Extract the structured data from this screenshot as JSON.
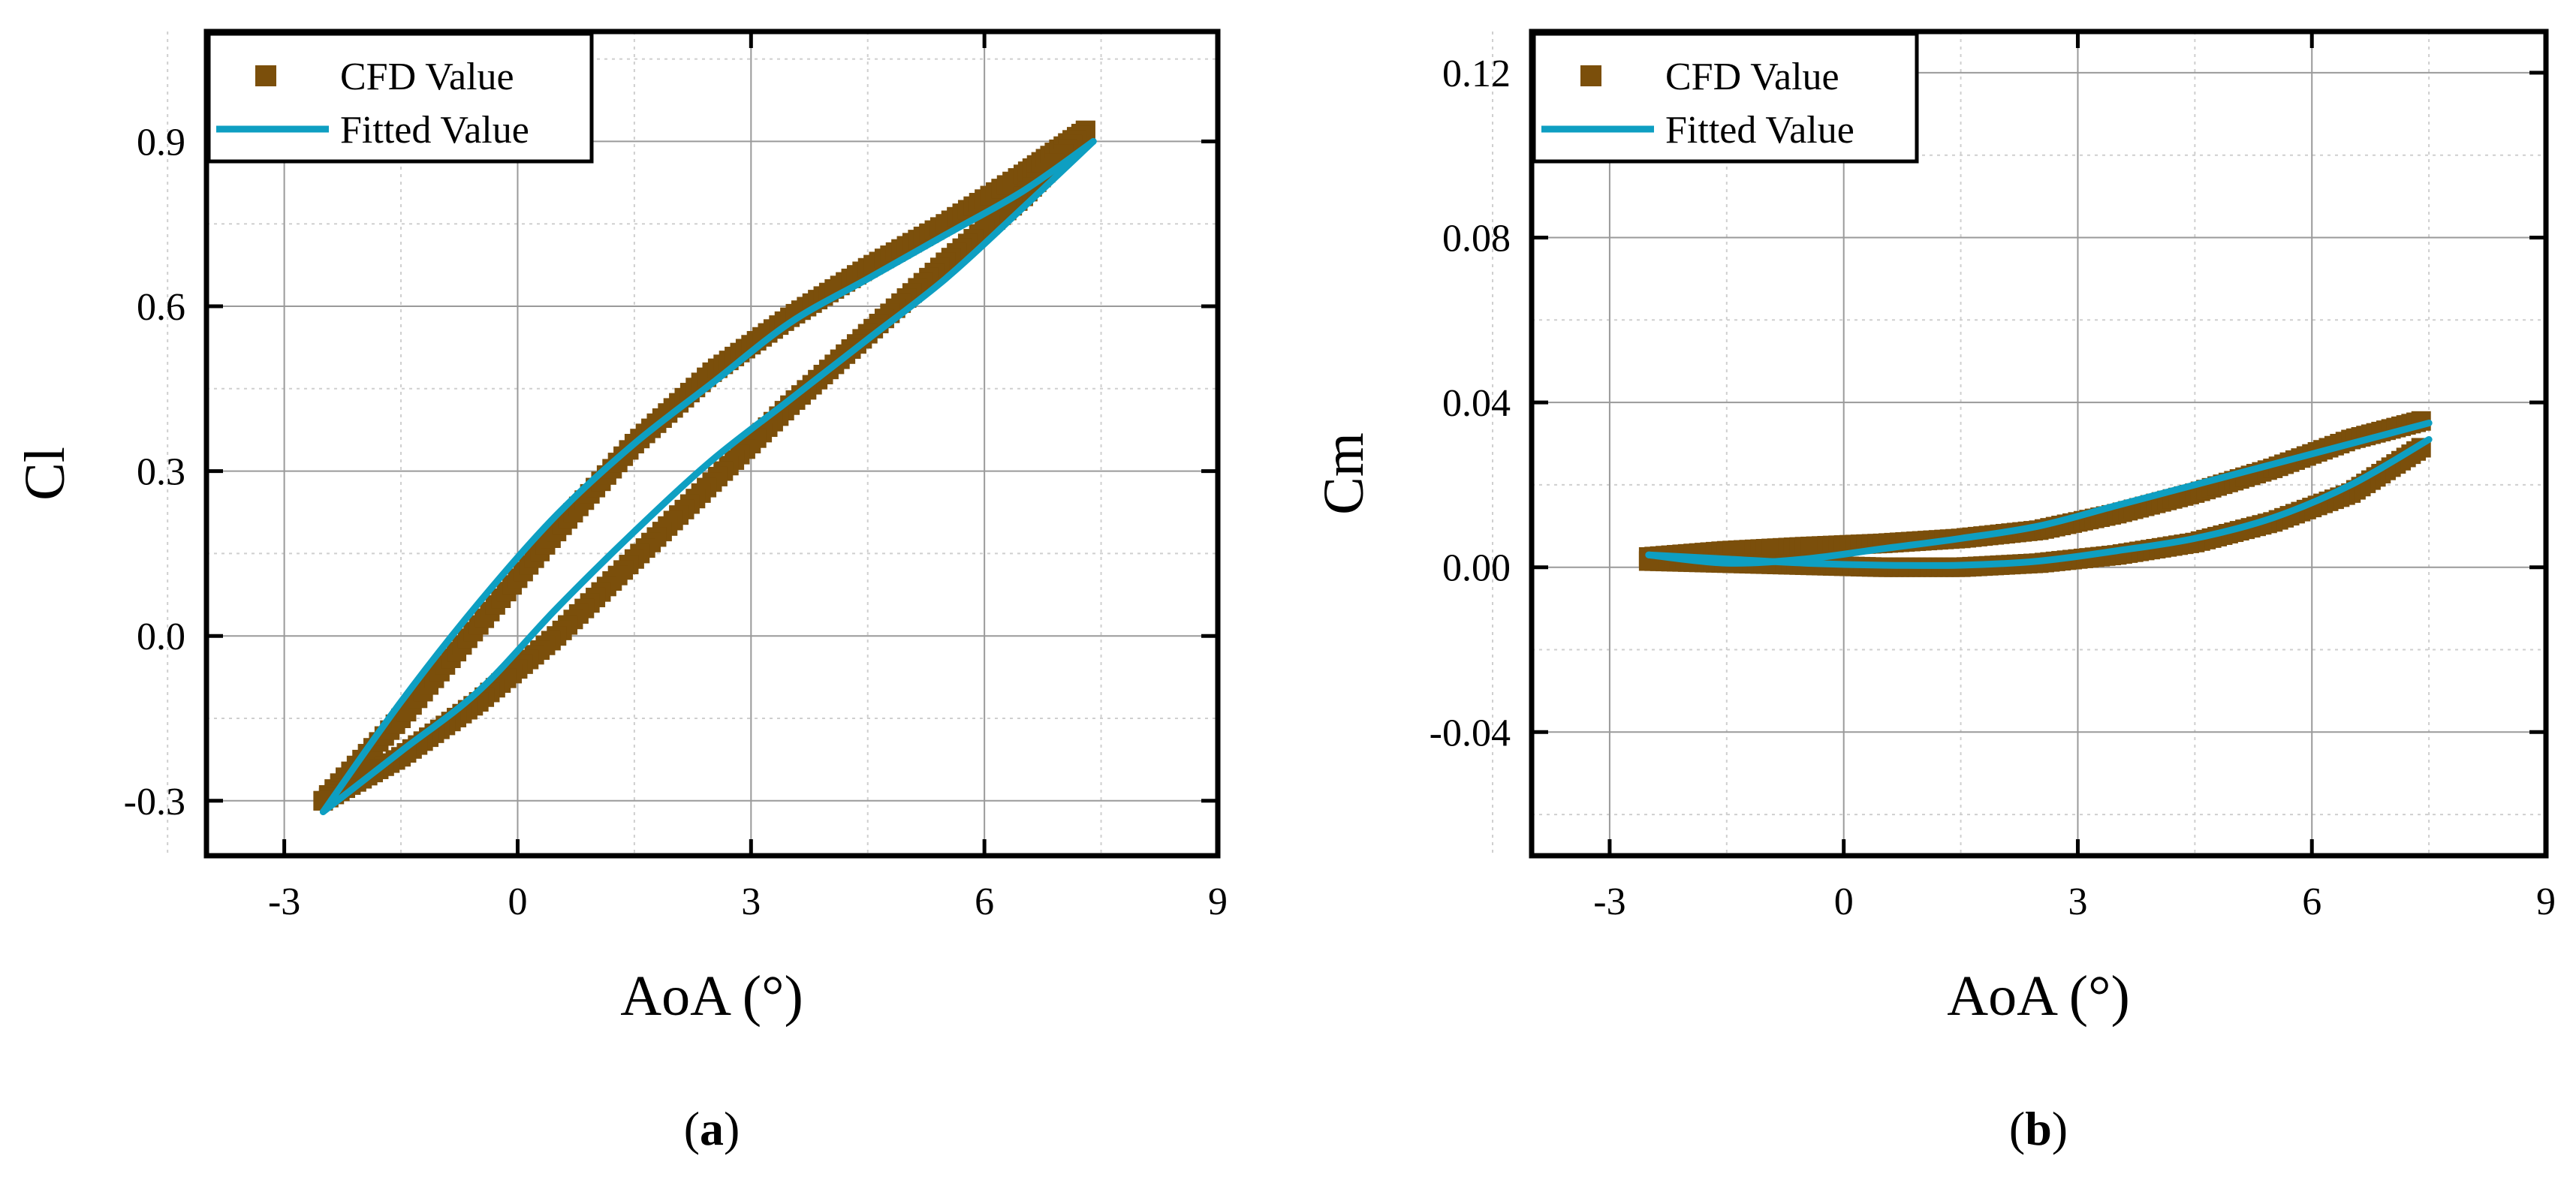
{
  "chart_data": [
    {
      "type": "scatter",
      "panel_label_open": "(",
      "panel_label_letter": "a",
      "panel_label_close": ")",
      "xlabel": "AoA (°)",
      "ylabel": "Cl",
      "xlim": [
        -4,
        9
      ],
      "ylim": [
        -0.4,
        1.1
      ],
      "xticks": [
        -3,
        0,
        3,
        6,
        9
      ],
      "yticks": [
        -0.3,
        0.0,
        0.3,
        0.6,
        0.9
      ],
      "ytick_labels": [
        "-0.3",
        "0.0",
        "0.3",
        "0.6",
        "0.9"
      ],
      "grid": true,
      "legend_position": "top-left",
      "series": [
        {
          "name": "CFD Value",
          "kind": "markers",
          "color": "#7B4F0B",
          "upper": {
            "x": [
              -2.5,
              -1.5,
              -0.5,
              0.5,
              1.5,
              2.5,
              3.5,
              4.5,
              5.5,
              6.5,
              7.3
            ],
            "y": [
              -0.3,
              -0.15,
              0.02,
              0.19,
              0.35,
              0.48,
              0.58,
              0.67,
              0.75,
              0.84,
              0.92
            ]
          },
          "lower": {
            "x": [
              7.3,
              6.5,
              5.5,
              4.5,
              3.5,
              2.5,
              1.5,
              0.5,
              -0.5,
              -1.5,
              -2.5
            ],
            "y": [
              0.92,
              0.8,
              0.68,
              0.55,
              0.42,
              0.28,
              0.14,
              0.0,
              -0.12,
              -0.22,
              -0.3
            ]
          }
        },
        {
          "name": "Fitted Value",
          "kind": "line",
          "color": "#0E9FC2",
          "upper": {
            "x": [
              -2.5,
              -1.5,
              -0.5,
              0.5,
              1.5,
              2.5,
              3.5,
              4.5,
              5.5,
              6.5,
              7.4
            ],
            "y": [
              -0.32,
              -0.12,
              0.06,
              0.22,
              0.35,
              0.46,
              0.57,
              0.65,
              0.73,
              0.81,
              0.9
            ]
          },
          "lower": {
            "x": [
              7.4,
              6.5,
              5.5,
              4.5,
              3.5,
              2.5,
              1.5,
              0.5,
              -0.5,
              -1.5,
              -2.5
            ],
            "y": [
              0.9,
              0.78,
              0.65,
              0.54,
              0.43,
              0.32,
              0.19,
              0.05,
              -0.1,
              -0.21,
              -0.32
            ]
          }
        }
      ]
    },
    {
      "type": "scatter",
      "panel_label_open": "(",
      "panel_label_letter": "b",
      "panel_label_close": ")",
      "xlabel": "AoA (°)",
      "ylabel": "Cm",
      "xlim": [
        -4,
        9
      ],
      "ylim": [
        -0.07,
        0.13
      ],
      "xticks": [
        -3,
        0,
        3,
        6,
        9
      ],
      "yticks": [
        -0.04,
        0.0,
        0.04,
        0.08,
        0.12
      ],
      "ytick_labels": [
        "-0.04",
        "0.00",
        "0.04",
        "0.08",
        "0.12"
      ],
      "grid": true,
      "legend_position": "top-left",
      "series": [
        {
          "name": "CFD Value",
          "kind": "markers",
          "color": "#7B4F0B",
          "upper": {
            "x": [
              -2.5,
              -1.5,
              -0.5,
              0.5,
              1.5,
              2.5,
              3.5,
              4.5,
              5.5,
              6.5,
              7.4
            ],
            "y": [
              0.0025,
              0.004,
              0.005,
              0.0058,
              0.007,
              0.009,
              0.013,
              0.018,
              0.024,
              0.031,
              0.0355
            ]
          },
          "lower": {
            "x": [
              7.4,
              6.5,
              5.5,
              4.5,
              3.5,
              2.5,
              1.5,
              0.5,
              -0.5,
              -1.5,
              -2.5
            ],
            "y": [
              0.029,
              0.018,
              0.011,
              0.006,
              0.003,
              0.001,
              0.0,
              0.0,
              0.0005,
              0.001,
              0.0015
            ]
          }
        },
        {
          "name": "Fitted Value",
          "kind": "line",
          "color": "#0E9FC2",
          "upper": {
            "x": [
              -2.5,
              -1.5,
              -0.5,
              0.5,
              1.5,
              2.5,
              3.5,
              4.5,
              5.5,
              6.5,
              7.5
            ],
            "y": [
              0.003,
              0.001,
              0.002,
              0.0045,
              0.007,
              0.01,
              0.015,
              0.02,
              0.025,
              0.03,
              0.035
            ]
          },
          "lower": {
            "x": [
              7.5,
              6.5,
              5.5,
              4.5,
              3.5,
              2.5,
              1.5,
              0.5,
              -0.5,
              -1.5,
              -2.5
            ],
            "y": [
              0.031,
              0.02,
              0.012,
              0.007,
              0.004,
              0.0015,
              0.0005,
              0.0005,
              0.001,
              0.002,
              0.003
            ]
          }
        }
      ]
    }
  ]
}
